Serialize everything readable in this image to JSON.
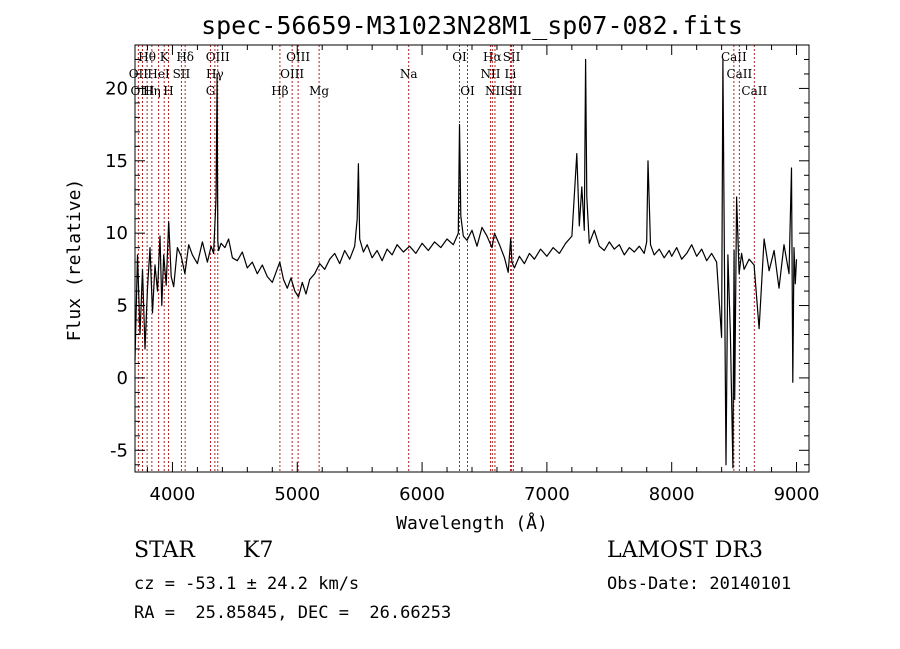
{
  "chart_data": {
    "type": "line",
    "title": "spec-56659-M31023N28M1_sp07-082.fits",
    "xlabel": "Wavelength (Å)",
    "ylabel": "Flux (relative)",
    "xlim": [
      3700,
      9100
    ],
    "ylim": [
      -6.5,
      23
    ],
    "xticks": [
      4000,
      5000,
      6000,
      7000,
      8000,
      9000
    ],
    "yticks": [
      -5,
      0,
      5,
      10,
      15,
      20
    ],
    "x_minor_step": 200,
    "y_minor_step": 1,
    "line_color": "#000000",
    "marker_color": "#b22222",
    "spectral_lines": [
      {
        "label": "Hθ",
        "wavelength": 3797,
        "row": 1
      },
      {
        "label": "OII",
        "wavelength": 3727,
        "row": 2
      },
      {
        "label": "OIII",
        "wavelength": 3760,
        "row": 3
      },
      {
        "label": "K",
        "wavelength": 3934,
        "row": 1
      },
      {
        "label": "HeI",
        "wavelength": 3889,
        "row": 2
      },
      {
        "label": "Hη",
        "wavelength": 3835,
        "row": 3
      },
      {
        "label": "SII",
        "wavelength": 4072,
        "row": 2
      },
      {
        "label": "H",
        "wavelength": 3968,
        "row": 3
      },
      {
        "label": "Hδ",
        "wavelength": 4102,
        "row": 1
      },
      {
        "label": "OIII",
        "wavelength": 4363,
        "row": 1
      },
      {
        "label": "Hγ",
        "wavelength": 4340,
        "row": 2
      },
      {
        "label": "G",
        "wavelength": 4305,
        "row": 3
      },
      {
        "label": "Hβ",
        "wavelength": 4861,
        "row": 3
      },
      {
        "label": "OIII",
        "wavelength": 5007,
        "row": 1
      },
      {
        "label": "OIII",
        "wavelength": 4959,
        "row": 2
      },
      {
        "label": "Mg",
        "wavelength": 5175,
        "row": 3
      },
      {
        "label": "Na",
        "wavelength": 5893,
        "row": 2
      },
      {
        "label": "OI",
        "wavelength": 6300,
        "row": 1
      },
      {
        "label": "OI",
        "wavelength": 6364,
        "row": 3
      },
      {
        "label": "Hα",
        "wavelength": 6563,
        "row": 1
      },
      {
        "label": "NII",
        "wavelength": 6548,
        "row": 2
      },
      {
        "label": "NII",
        "wavelength": 6584,
        "row": 3
      },
      {
        "label": "SII",
        "wavelength": 6717,
        "row": 1
      },
      {
        "label": "Li",
        "wavelength": 6708,
        "row": 2
      },
      {
        "label": "SII",
        "wavelength": 6731,
        "row": 3
      },
      {
        "label": "CaII",
        "wavelength": 8498,
        "row": 1
      },
      {
        "label": "CaII",
        "wavelength": 8542,
        "row": 2
      },
      {
        "label": "CaII",
        "wavelength": 8662,
        "row": 3
      }
    ],
    "series": [
      {
        "name": "flux",
        "x": [
          3700,
          3720,
          3740,
          3760,
          3780,
          3800,
          3820,
          3840,
          3860,
          3880,
          3900,
          3915,
          3930,
          3950,
          3970,
          3990,
          4010,
          4040,
          4070,
          4100,
          4130,
          4160,
          4200,
          4240,
          4280,
          4310,
          4330,
          4350,
          4358,
          4363,
          4370,
          4390,
          4420,
          4450,
          4480,
          4520,
          4560,
          4600,
          4640,
          4680,
          4720,
          4760,
          4800,
          4830,
          4860,
          4890,
          4920,
          4950,
          4980,
          5010,
          5040,
          5070,
          5100,
          5140,
          5180,
          5220,
          5260,
          5300,
          5340,
          5380,
          5420,
          5460,
          5480,
          5490,
          5500,
          5530,
          5560,
          5600,
          5640,
          5680,
          5720,
          5760,
          5800,
          5850,
          5900,
          5950,
          6000,
          6050,
          6100,
          6150,
          6200,
          6250,
          6290,
          6300,
          6310,
          6330,
          6360,
          6400,
          6440,
          6480,
          6520,
          6560,
          6580,
          6620,
          6660,
          6690,
          6710,
          6720,
          6740,
          6780,
          6820,
          6860,
          6900,
          6950,
          7000,
          7050,
          7100,
          7150,
          7200,
          7240,
          7260,
          7280,
          7300,
          7310,
          7320,
          7340,
          7380,
          7420,
          7460,
          7500,
          7540,
          7580,
          7620,
          7660,
          7700,
          7740,
          7780,
          7800,
          7810,
          7830,
          7860,
          7900,
          7940,
          7980,
          8000,
          8040,
          8080,
          8120,
          8160,
          8200,
          8240,
          8280,
          8320,
          8360,
          8400,
          8410,
          8420,
          8435,
          8450,
          8470,
          8490,
          8500,
          8505,
          8520,
          8540,
          8560,
          8580,
          8620,
          8660,
          8700,
          8740,
          8780,
          8820,
          8860,
          8900,
          8940,
          8960,
          8970,
          8980,
          8990,
          9000
        ],
        "y": [
          1.2,
          8.5,
          3.0,
          7.5,
          2.0,
          6.2,
          9.0,
          4.5,
          7.8,
          6.0,
          9.8,
          5.0,
          8.5,
          6.4,
          10.8,
          7.0,
          6.3,
          9.0,
          8.4,
          7.2,
          9.2,
          8.5,
          7.9,
          9.4,
          8.0,
          9.1,
          8.6,
          12.5,
          21.0,
          9.5,
          8.8,
          9.3,
          9.0,
          9.6,
          8.3,
          8.1,
          8.7,
          7.6,
          8.0,
          7.2,
          7.8,
          7.0,
          6.6,
          7.3,
          8.0,
          6.8,
          6.2,
          6.9,
          6.0,
          5.6,
          6.6,
          5.8,
          6.8,
          7.2,
          7.9,
          7.5,
          8.2,
          8.6,
          7.9,
          8.8,
          8.2,
          9.1,
          11.0,
          14.8,
          9.6,
          8.7,
          9.2,
          8.3,
          8.8,
          8.1,
          8.9,
          8.5,
          9.2,
          8.7,
          9.1,
          8.6,
          9.3,
          8.8,
          9.4,
          9.0,
          9.6,
          9.2,
          10.0,
          17.5,
          11.2,
          9.8,
          9.5,
          10.2,
          9.1,
          10.4,
          9.8,
          9.0,
          10.0,
          9.2,
          8.3,
          7.3,
          9.6,
          8.0,
          7.6,
          8.4,
          7.9,
          8.6,
          8.2,
          8.9,
          8.4,
          9.0,
          8.6,
          9.3,
          9.8,
          15.5,
          10.5,
          13.2,
          10.2,
          22.0,
          12.5,
          9.3,
          10.2,
          9.1,
          8.8,
          9.4,
          8.9,
          9.2,
          8.5,
          9.0,
          8.7,
          9.1,
          8.6,
          9.4,
          15.0,
          9.2,
          8.5,
          8.9,
          8.3,
          8.8,
          8.4,
          9.0,
          8.2,
          8.6,
          9.2,
          8.4,
          8.9,
          8.1,
          8.6,
          8.0,
          2.8,
          22.0,
          11.0,
          -6.0,
          8.5,
          3.0,
          -6.2,
          8.8,
          -1.5,
          12.5,
          7.2,
          8.6,
          7.5,
          8.2,
          7.8,
          3.4,
          9.6,
          7.4,
          8.8,
          6.2,
          9.2,
          7.2,
          14.5,
          -0.3,
          9.0,
          6.5,
          8.2
        ]
      }
    ]
  },
  "info": {
    "object_class": "STAR",
    "subclass": "K7",
    "redshift_line": "cz = -53.1 ± 24.2 km/s",
    "coords_line": "RA =  25.85845, DEC =  26.66253",
    "survey": "LAMOST DR3",
    "obs_date": "Obs-Date: 20140101"
  }
}
